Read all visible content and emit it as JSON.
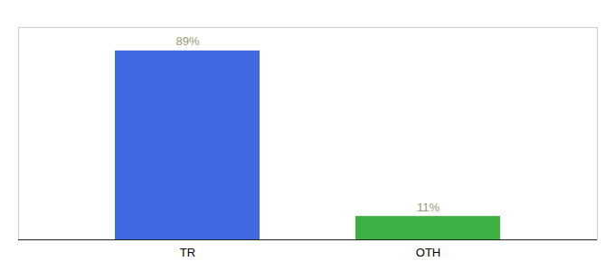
{
  "chart_data": {
    "type": "bar",
    "categories": [
      "TR",
      "OTH"
    ],
    "values": [
      89,
      11
    ],
    "value_labels": [
      "89%",
      "11%"
    ],
    "colors": [
      "#4169e1",
      "#3cb043"
    ],
    "ylim": [
      0,
      100
    ],
    "data_labels": true,
    "tick_labels": "x",
    "grid": false
  }
}
